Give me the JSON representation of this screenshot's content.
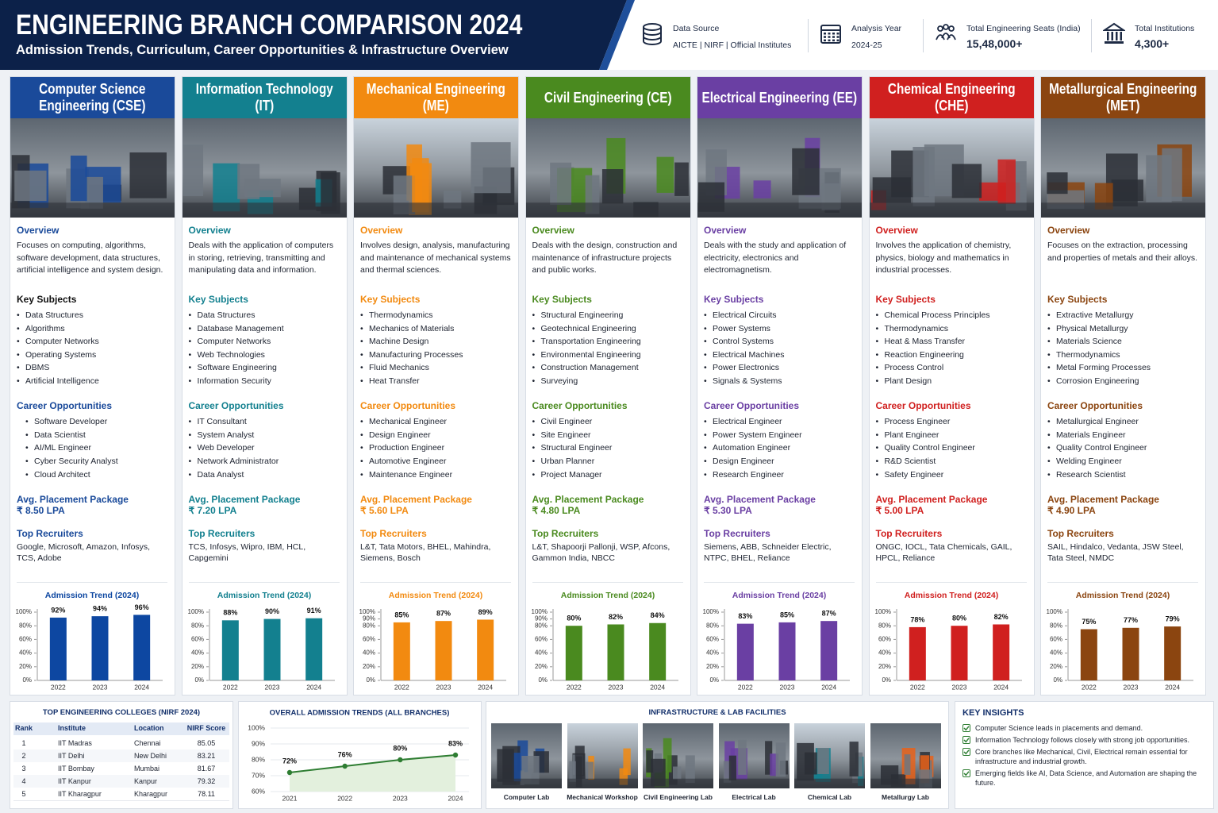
{
  "header": {
    "title": "ENGINEERING BRANCH COMPARISON 2024",
    "subtitle": "Admission Trends, Curriculum, Career Opportunities & Infrastructure Overview",
    "stats": [
      {
        "label": "Data Source",
        "value": "AICTE | NIRF | Official Institutes"
      },
      {
        "label": "Analysis Year",
        "value": "2024-25"
      },
      {
        "label": "Total Engineering Seats (India)",
        "value": "15,48,000+"
      },
      {
        "label": "Total Institutions",
        "value": "4,300+"
      }
    ]
  },
  "section_labels": {
    "overview": "Overview",
    "key_subjects": "Key Subjects",
    "careers": "Career Opportunities",
    "package": "Avg. Placement Package",
    "recruiters": "Top Recruiters"
  },
  "branches": [
    {
      "name": "Computer Science Engineering (CSE)",
      "color": "#1a4a9a",
      "overview": "Focuses on computing, algorithms, software development, data structures, artificial intelligence and system design.",
      "key_subjects": [
        "Data Structures",
        "Algorithms",
        "Computer Networks",
        "Operating Systems",
        "DBMS",
        "Artificial Intelligence"
      ],
      "careers": [
        "Software Developer",
        "Data Scientist",
        "AI/ML Engineer",
        "Cyber Security Analyst",
        "Cloud Architect"
      ],
      "package": "₹ 8.50 LPA",
      "recruiters": "Google, Microsoft, Amazon, Infosys, TCS, Adobe"
    },
    {
      "name": "Information Technology (IT)",
      "color": "#13808f",
      "overview": "Deals with the application of computers in storing, retrieving, transmitting and manipulating data and information.",
      "key_subjects": [
        "Data Structures",
        "Database Management",
        "Computer Networks",
        "Web Technologies",
        "Software Engineering",
        "Information Security"
      ],
      "careers": [
        "IT Consultant",
        "System Analyst",
        "Web Developer",
        "Network Administrator",
        "Data Analyst"
      ],
      "package": "₹ 7.20 LPA",
      "recruiters": "TCS, Infosys, Wipro, IBM, HCL, Capgemini"
    },
    {
      "name": "Mechanical Engineering (ME)",
      "color": "#f28a10",
      "overview": "Involves design, analysis, manufacturing and maintenance of mechanical systems and thermal sciences.",
      "key_subjects": [
        "Thermodynamics",
        "Mechanics of Materials",
        "Machine Design",
        "Manufacturing Processes",
        "Fluid Mechanics",
        "Heat Transfer"
      ],
      "careers": [
        "Mechanical Engineer",
        "Design Engineer",
        "Production Engineer",
        "Automotive Engineer",
        "Maintenance Engineer"
      ],
      "package": "₹ 5.60 LPA",
      "recruiters": "L&T, Tata Motors, BHEL, Mahindra, Siemens, Bosch"
    },
    {
      "name": "Civil Engineering (CE)",
      "color": "#4a8a1f",
      "overview": "Deals with the design, construction and maintenance of infrastructure projects and public works.",
      "key_subjects": [
        "Structural Engineering",
        "Geotechnical Engineering",
        "Transportation Engineering",
        "Environmental Engineering",
        "Construction Management",
        "Surveying"
      ],
      "careers": [
        "Civil Engineer",
        "Site Engineer",
        "Structural Engineer",
        "Urban Planner",
        "Project Manager"
      ],
      "package": "₹ 4.80 LPA",
      "recruiters": "L&T, Shapoorji Pallonji, WSP, Afcons, Gammon India, NBCC"
    },
    {
      "name": "Electrical Engineering (EE)",
      "color": "#6a3fa3",
      "overview": "Deals with the study and application of electricity, electronics and electromagnetism.",
      "key_subjects": [
        "Electrical Circuits",
        "Power Systems",
        "Control Systems",
        "Electrical Machines",
        "Power Electronics",
        "Signals & Systems"
      ],
      "careers": [
        "Electrical Engineer",
        "Power System Engineer",
        "Automation Engineer",
        "Design Engineer",
        "Research Engineer"
      ],
      "package": "₹ 5.30 LPA",
      "recruiters": "Siemens, ABB, Schneider Electric, NTPC, BHEL, Reliance"
    },
    {
      "name": "Chemical Engineering (CHE)",
      "color": "#d0201f",
      "overview": "Involves the application of chemistry, physics, biology and mathematics in industrial processes.",
      "key_subjects": [
        "Chemical Process Principles",
        "Thermodynamics",
        "Heat & Mass Transfer",
        "Reaction Engineering",
        "Process Control",
        "Plant Design"
      ],
      "careers": [
        "Process Engineer",
        "Plant Engineer",
        "Quality Control Engineer",
        "R&D Scientist",
        "Safety Engineer"
      ],
      "package": "₹ 5.00 LPA",
      "recruiters": "ONGC, IOCL, Tata Chemicals, GAIL, HPCL, Reliance"
    },
    {
      "name": "Metallurgical Engineering (MET)",
      "color": "#8b4510",
      "overview": "Focuses on the extraction, processing and properties of metals and their alloys.",
      "key_subjects": [
        "Extractive Metallurgy",
        "Physical Metallurgy",
        "Materials Science",
        "Thermodynamics",
        "Metal Forming Processes",
        "Corrosion Engineering"
      ],
      "careers": [
        "Metallurgical Engineer",
        "Materials Engineer",
        "Quality Control Engineer",
        "Welding Engineer",
        "Research Scientist"
      ],
      "package": "₹ 4.90 LPA",
      "recruiters": "SAIL, Hindalco, Vedanta, JSW Steel, Tata Steel, NMDC"
    }
  ],
  "chart_data": [
    {
      "type": "bar",
      "title": "Admission Trend (2024)",
      "categories": [
        "2022",
        "2023",
        "2024"
      ],
      "values": [
        92,
        94,
        96
      ],
      "value_labels": [
        "92%",
        "94%",
        "96%"
      ],
      "color": "#0d47a1",
      "ylim": [
        0,
        100
      ],
      "yticks": [
        {
          "value": 0,
          "label": "0%"
        },
        {
          "value": 20,
          "label": "20%"
        },
        {
          "value": 40,
          "label": "40%"
        },
        {
          "value": 60,
          "label": "60%"
        },
        {
          "value": 80,
          "label": "80%"
        },
        {
          "value": 100,
          "label": "100%"
        }
      ]
    },
    {
      "type": "bar",
      "title": "Admission Trend (2024)",
      "categories": [
        "2022",
        "2023",
        "2024"
      ],
      "values": [
        88,
        90,
        91
      ],
      "value_labels": [
        "88%",
        "90%",
        "91%"
      ],
      "color": "#13808f",
      "ylim": [
        0,
        100
      ],
      "yticks": [
        {
          "value": 0,
          "label": "0%"
        },
        {
          "value": 20,
          "label": "20%"
        },
        {
          "value": 40,
          "label": "40%"
        },
        {
          "value": 60,
          "label": "60%"
        },
        {
          "value": 80,
          "label": "80%"
        },
        {
          "value": 100,
          "label": "100%"
        }
      ]
    },
    {
      "type": "bar",
      "title": "Admission Trend (2024)",
      "categories": [
        "2022",
        "2023",
        "2024"
      ],
      "values": [
        85,
        87,
        89
      ],
      "value_labels": [
        "85%",
        "87%",
        "89%"
      ],
      "color": "#f28a10",
      "ylim": [
        0,
        100
      ],
      "yticks": [
        {
          "value": 0,
          "label": "0%"
        },
        {
          "value": 20,
          "label": "20%"
        },
        {
          "value": 40,
          "label": "40%"
        },
        {
          "value": 60,
          "label": "60%"
        },
        {
          "value": 80,
          "label": "80%"
        },
        {
          "value": 90,
          "label": "90%"
        },
        {
          "value": 100,
          "label": "100%"
        }
      ]
    },
    {
      "type": "bar",
      "title": "Admission Trend (2024)",
      "categories": [
        "2022",
        "2023",
        "2024"
      ],
      "values": [
        80,
        82,
        84
      ],
      "value_labels": [
        "80%",
        "82%",
        "84%"
      ],
      "color": "#4a8a1f",
      "ylim": [
        0,
        100
      ],
      "yticks": [
        {
          "value": 0,
          "label": "0%"
        },
        {
          "value": 20,
          "label": "20%"
        },
        {
          "value": 40,
          "label": "40%"
        },
        {
          "value": 60,
          "label": "60%"
        },
        {
          "value": 80,
          "label": "80%"
        },
        {
          "value": 90,
          "label": "90%"
        },
        {
          "value": 100,
          "label": "100%"
        }
      ]
    },
    {
      "type": "bar",
      "title": "Admission Trend (2024)",
      "categories": [
        "2022",
        "2023",
        "2024"
      ],
      "values": [
        83,
        85,
        87
      ],
      "value_labels": [
        "83%",
        "85%",
        "87%"
      ],
      "color": "#6a3fa3",
      "ylim": [
        0,
        100
      ],
      "yticks": [
        {
          "value": 0,
          "label": "0%"
        },
        {
          "value": 20,
          "label": "20%"
        },
        {
          "value": 40,
          "label": "40%"
        },
        {
          "value": 60,
          "label": "60%"
        },
        {
          "value": 80,
          "label": "80%"
        },
        {
          "value": 100,
          "label": "100%"
        }
      ]
    },
    {
      "type": "bar",
      "title": "Admission Trend (2024)",
      "categories": [
        "2022",
        "2023",
        "2024"
      ],
      "values": [
        78,
        80,
        82
      ],
      "value_labels": [
        "78%",
        "80%",
        "82%"
      ],
      "color": "#d0201f",
      "ylim": [
        0,
        100
      ],
      "yticks": [
        {
          "value": 0,
          "label": "0%"
        },
        {
          "value": 20,
          "label": "20%"
        },
        {
          "value": 40,
          "label": "40%"
        },
        {
          "value": 60,
          "label": "60%"
        },
        {
          "value": 80,
          "label": "80%"
        },
        {
          "value": 100,
          "label": "100%"
        }
      ]
    },
    {
      "type": "bar",
      "title": "Admission Trend (2024)",
      "categories": [
        "2022",
        "2023",
        "2024"
      ],
      "values": [
        75,
        77,
        79
      ],
      "value_labels": [
        "75%",
        "77%",
        "79%"
      ],
      "color": "#8b4510",
      "ylim": [
        0,
        100
      ],
      "yticks": [
        {
          "value": 0,
          "label": "0%"
        },
        {
          "value": 20,
          "label": "20%"
        },
        {
          "value": 40,
          "label": "40%"
        },
        {
          "value": 60,
          "label": "60%"
        },
        {
          "value": 80,
          "label": "80%"
        },
        {
          "value": 100,
          "label": "100%"
        }
      ]
    },
    {
      "type": "line",
      "title": "OVERALL ADMISSION TRENDS (ALL BRANCHES)",
      "categories": [
        "2021",
        "2022",
        "2023",
        "2024"
      ],
      "values": [
        72,
        76,
        80,
        83
      ],
      "value_labels": [
        "72%",
        "76%",
        "80%",
        "83%"
      ],
      "color": "#2e7d32",
      "ylim": [
        60,
        100
      ],
      "yticks": [
        {
          "value": 60,
          "label": "60%"
        },
        {
          "value": 70,
          "label": "70%"
        },
        {
          "value": 80,
          "label": "80%"
        },
        {
          "value": 90,
          "label": "90%"
        },
        {
          "value": 100,
          "label": "100%"
        }
      ]
    }
  ],
  "colleges": {
    "title": "TOP ENGINEERING COLLEGES (NIRF 2024)",
    "columns": [
      "Rank",
      "Institute",
      "Location",
      "NIRF Score"
    ],
    "rows": [
      [
        1,
        "IIT Madras",
        "Chennai",
        85.05
      ],
      [
        2,
        "IIT Delhi",
        "New Delhi",
        83.21
      ],
      [
        3,
        "IIT Bombay",
        "Mumbai",
        81.67
      ],
      [
        4,
        "IIT Kanpur",
        "Kanpur",
        79.32
      ],
      [
        5,
        "IIT Kharagpur",
        "Kharagpur",
        78.11
      ]
    ]
  },
  "infrastructure": {
    "title": "INFRASTRUCTURE & LAB FACILITIES",
    "labs": [
      "Computer Lab",
      "Mechanical Workshop",
      "Civil Engineering Lab",
      "Electrical Lab",
      "Chemical Lab",
      "Metallurgy Lab"
    ]
  },
  "insights": {
    "title": "KEY INSIGHTS",
    "items": [
      "Computer Science leads in placements and demand.",
      "Information Technology follows closely with strong job opportunities.",
      "Core branches like Mechanical, Civil, Electrical remain essential for infrastructure and industrial growth.",
      "Emerging fields like AI, Data Science, and Automation are shaping the future."
    ]
  }
}
